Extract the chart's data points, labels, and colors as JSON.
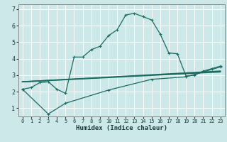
{
  "xlabel": "Humidex (Indice chaleur)",
  "bg_color": "#cce8e8",
  "grid_color": "#ffffff",
  "line_color": "#1a6b62",
  "xlim": [
    -0.5,
    23.5
  ],
  "ylim": [
    0.5,
    7.3
  ],
  "xticks": [
    0,
    1,
    2,
    3,
    4,
    5,
    6,
    7,
    8,
    9,
    10,
    11,
    12,
    13,
    14,
    15,
    16,
    17,
    18,
    19,
    20,
    21,
    22,
    23
  ],
  "yticks": [
    1,
    2,
    3,
    4,
    5,
    6,
    7
  ],
  "line1_x": [
    0,
    1,
    2,
    3,
    4,
    5,
    6,
    7,
    8,
    9,
    10,
    11,
    12,
    13,
    14,
    15,
    16,
    17,
    18,
    19,
    20,
    21,
    22,
    23
  ],
  "line1_y": [
    2.15,
    2.25,
    2.55,
    2.6,
    2.15,
    1.9,
    4.1,
    4.1,
    4.55,
    4.75,
    5.4,
    5.75,
    6.65,
    6.75,
    6.55,
    6.35,
    5.5,
    4.35,
    4.3,
    2.95,
    3.0,
    3.25,
    3.4,
    3.55
  ],
  "line2_x": [
    0,
    23
  ],
  "line2_y": [
    2.6,
    3.2
  ],
  "line3_x": [
    0,
    23
  ],
  "line3_y": [
    2.6,
    3.25
  ],
  "line4_x": [
    0,
    3,
    5,
    10,
    15,
    19,
    23
  ],
  "line4_y": [
    2.15,
    0.65,
    1.3,
    2.1,
    2.75,
    2.9,
    3.5
  ],
  "marker": "+"
}
